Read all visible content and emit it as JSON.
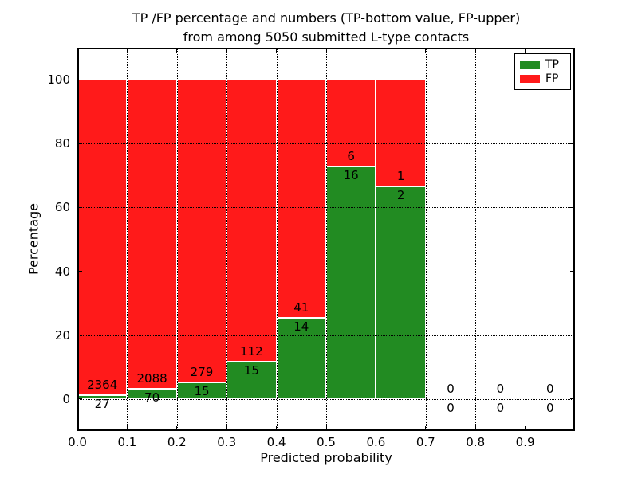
{
  "title": {
    "line1": "TP /FP percentage and numbers (TP-bottom value, FP-upper)",
    "line2": "from among 5050 submitted L-type contacts"
  },
  "axes": {
    "xlabel": "Predicted probability",
    "ylabel": "Percentage",
    "x_tick_labels": [
      "0.0",
      "0.1",
      "0.2",
      "0.3",
      "0.4",
      "0.5",
      "0.6",
      "0.7",
      "0.8",
      "0.9"
    ],
    "y_tick_labels": [
      "0",
      "20",
      "40",
      "60",
      "80",
      "100"
    ]
  },
  "legend": {
    "position": "upper right",
    "items": [
      {
        "label": "TP",
        "color": "#228B22"
      },
      {
        "label": "FP",
        "color": "#FF1A1A"
      }
    ]
  },
  "chart_data": {
    "type": "bar",
    "stacked": true,
    "title": "TP /FP percentage and numbers (TP-bottom value, FP-upper) from among 5050 submitted L-type contacts",
    "xlabel": "Predicted probability",
    "ylabel": "Percentage",
    "bin_edges": [
      0.0,
      0.1,
      0.2,
      0.3,
      0.4,
      0.5,
      0.6,
      0.7,
      0.8,
      0.9,
      1.0
    ],
    "series": [
      {
        "name": "TP",
        "color": "#228B22",
        "counts": [
          27,
          70,
          15,
          15,
          14,
          16,
          2,
          0,
          0,
          0
        ]
      },
      {
        "name": "FP",
        "color": "#FF1A1A",
        "counts": [
          2364,
          2088,
          279,
          112,
          41,
          6,
          1,
          0,
          0,
          0
        ]
      }
    ],
    "tp_percent_of_bin": [
      1.13,
      3.24,
      5.1,
      11.81,
      25.45,
      72.73,
      66.67,
      0,
      0,
      0
    ],
    "y_ticks": [
      0,
      20,
      40,
      60,
      80,
      100
    ],
    "ylim": [
      -10,
      110
    ],
    "xlim": [
      0.0,
      1.0
    ],
    "grid": "dotted",
    "grid_on_top": true,
    "bar_edge_color": "#ffffff",
    "legend_position": "upper right"
  }
}
